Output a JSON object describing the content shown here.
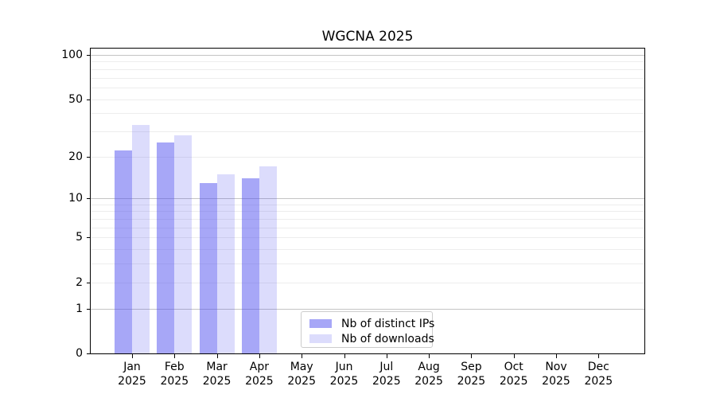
{
  "title": "WGCNA 2025",
  "chart_data": {
    "type": "bar",
    "title": "WGCNA 2025",
    "months": [
      "Jan",
      "Feb",
      "Mar",
      "Apr",
      "May",
      "Jun",
      "Jul",
      "Aug",
      "Sep",
      "Oct",
      "Nov",
      "Dec"
    ],
    "year_label": "2025",
    "series": [
      {
        "name": "Nb of distinct IPs",
        "color": "#5050F080",
        "values": [
          22,
          25,
          13,
          14,
          null,
          null,
          null,
          null,
          null,
          null,
          null,
          null
        ]
      },
      {
        "name": "Nb of downloads",
        "color": "#5050F033",
        "values": [
          33,
          28,
          15,
          17,
          null,
          null,
          null,
          null,
          null,
          null,
          null,
          null
        ]
      }
    ],
    "y_axis": {
      "scale": "log1p",
      "ylim": [
        0,
        111
      ],
      "ticks": [
        0,
        1,
        2,
        5,
        10,
        20,
        50,
        100
      ],
      "major_gridlines": [
        1,
        10,
        100
      ],
      "minor_gridlines": [
        2,
        3,
        4,
        5,
        6,
        7,
        8,
        9,
        20,
        30,
        40,
        50,
        60,
        70,
        80,
        90
      ]
    },
    "xlabel": "",
    "ylabel": "",
    "grid": true,
    "legend_position": "inside lower-center-left"
  },
  "colors": {
    "bar_distinct_ips_on_white": "#A8A8F8",
    "bar_downloads_on_white": "#DCDCFB",
    "major_grid": "#C4C4C4",
    "minor_grid": "#EDEDED",
    "axis": "#000000",
    "legend_border": "#CCCCCC"
  }
}
